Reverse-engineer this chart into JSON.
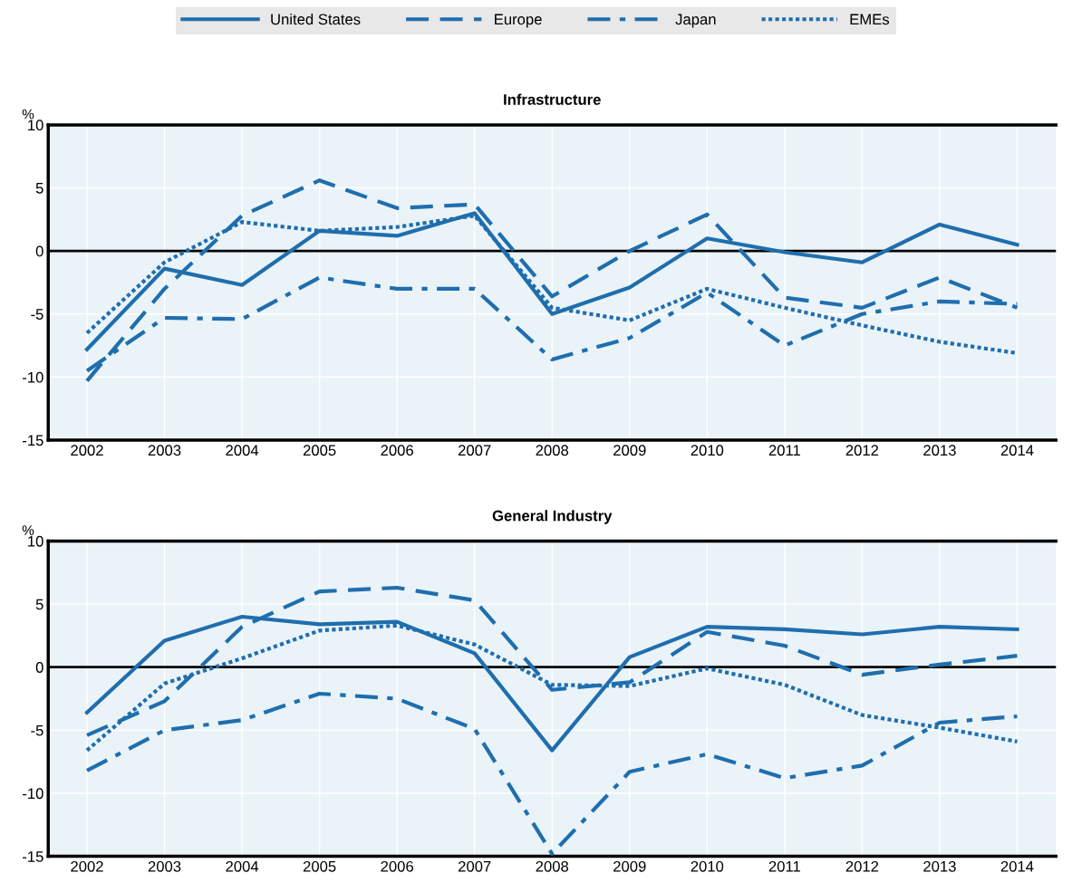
{
  "chart_data": [
    {
      "type": "line",
      "title": "Infrastructure",
      "ylabel": "%",
      "categories": [
        "2002",
        "2003",
        "2004",
        "2005",
        "2006",
        "2007",
        "2008",
        "2009",
        "2010",
        "2011",
        "2012",
        "2013",
        "2014"
      ],
      "series": [
        {
          "name": "United States",
          "color": "#1f6eae",
          "line_style": "solid",
          "values": [
            -7.8,
            -1.4,
            -2.7,
            1.6,
            1.2,
            3.0,
            -5.0,
            -2.9,
            1.0,
            -0.1,
            -0.9,
            2.1,
            0.5
          ]
        },
        {
          "name": "Europe",
          "color": "#1f6eae",
          "line_style": "dashed",
          "values": [
            -10.3,
            -3.0,
            2.8,
            5.6,
            3.4,
            3.7,
            -3.6,
            0.0,
            2.9,
            -3.7,
            -4.5,
            -2.1,
            -4.5
          ]
        },
        {
          "name": "Japan",
          "color": "#1f6eae",
          "line_style": "dashdot",
          "values": [
            -9.5,
            -5.3,
            -5.4,
            -2.1,
            -3.0,
            -3.0,
            -8.6,
            -6.9,
            -3.3,
            -7.5,
            -5.0,
            -4.0,
            -4.2
          ]
        },
        {
          "name": "EMEs",
          "color": "#1f6eae",
          "line_style": "dotted",
          "values": [
            -6.5,
            -0.9,
            2.3,
            1.6,
            1.9,
            2.8,
            -4.5,
            -5.5,
            -3.0,
            -4.5,
            -5.9,
            -7.2,
            -8.1
          ]
        }
      ],
      "ylim": [
        -15,
        10
      ],
      "yticks": [
        -15,
        -10,
        -5,
        0,
        5,
        10
      ],
      "grid": true,
      "legend": "top",
      "ref_lines": [
        {
          "axis": "y",
          "value": 0,
          "color": "#000000"
        }
      ]
    },
    {
      "type": "line",
      "title": "General Industry",
      "ylabel": "%",
      "categories": [
        "2002",
        "2003",
        "2004",
        "2005",
        "2006",
        "2007",
        "2008",
        "2009",
        "2010",
        "2011",
        "2012",
        "2013",
        "2014"
      ],
      "series": [
        {
          "name": "United States",
          "color": "#1f6eae",
          "line_style": "solid",
          "values": [
            -3.6,
            2.1,
            4.0,
            3.4,
            3.6,
            1.1,
            -6.6,
            0.8,
            3.2,
            3.0,
            2.6,
            3.2,
            3.0
          ]
        },
        {
          "name": "Europe",
          "color": "#1f6eae",
          "line_style": "dashed",
          "values": [
            -5.4,
            -2.7,
            3.2,
            6.0,
            6.3,
            5.3,
            -1.8,
            -1.2,
            2.8,
            1.7,
            -0.6,
            0.2,
            0.9
          ]
        },
        {
          "name": "Japan",
          "color": "#1f6eae",
          "line_style": "dashdot",
          "values": [
            -8.2,
            -5.0,
            -4.2,
            -2.1,
            -2.5,
            -4.9,
            -14.8,
            -8.3,
            -6.9,
            -8.8,
            -7.8,
            -4.4,
            -3.9
          ]
        },
        {
          "name": "EMEs",
          "color": "#1f6eae",
          "line_style": "dotted",
          "values": [
            -6.6,
            -1.3,
            0.7,
            2.9,
            3.3,
            1.8,
            -1.4,
            -1.5,
            -0.1,
            -1.4,
            -3.8,
            -4.8,
            -5.9
          ]
        }
      ],
      "ylim": [
        -15,
        10
      ],
      "yticks": [
        -15,
        -10,
        -5,
        0,
        5,
        10
      ],
      "grid": true,
      "ref_lines": [
        {
          "axis": "y",
          "value": 0,
          "color": "#000000"
        }
      ]
    }
  ]
}
